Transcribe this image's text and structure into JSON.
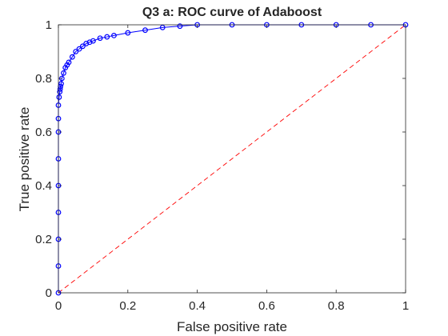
{
  "chart_data": {
    "type": "line",
    "title": "Q3 a: ROC curve of Adaboost",
    "xlabel": "False positive rate",
    "ylabel": "True positive rate",
    "xlim": [
      0,
      1
    ],
    "ylim": [
      0,
      1
    ],
    "xticks": [
      "0",
      "0.2",
      "0.4",
      "0.6",
      "0.8",
      "1"
    ],
    "yticks": [
      "0",
      "0.2",
      "0.4",
      "0.6",
      "0.8",
      "1"
    ],
    "grid": false,
    "series": [
      {
        "color": "#0000ff",
        "marker": "circle",
        "line_style": "solid",
        "x": [
          0,
          0,
          0,
          0,
          0,
          0,
          0,
          0,
          0,
          0.002,
          0.004,
          0.005,
          0.006,
          0.008,
          0.01,
          0.015,
          0.02,
          0.025,
          0.03,
          0.04,
          0.05,
          0.06,
          0.07,
          0.08,
          0.09,
          0.1,
          0.12,
          0.14,
          0.16,
          0.2,
          0.25,
          0.3,
          0.35,
          0.4,
          0.5,
          0.6,
          0.7,
          0.8,
          0.9,
          1.0
        ],
        "y": [
          0,
          0.1,
          0.2,
          0.3,
          0.4,
          0.5,
          0.6,
          0.65,
          0.7,
          0.73,
          0.75,
          0.76,
          0.77,
          0.78,
          0.8,
          0.82,
          0.84,
          0.85,
          0.86,
          0.88,
          0.9,
          0.91,
          0.92,
          0.93,
          0.935,
          0.94,
          0.95,
          0.955,
          0.96,
          0.97,
          0.98,
          0.99,
          0.995,
          1.0,
          1.0,
          1.0,
          1.0,
          1.0,
          1.0,
          1.0
        ]
      },
      {
        "color": "#ff0000",
        "marker": "none",
        "line_style": "dashed",
        "x": [
          0,
          1
        ],
        "y": [
          0,
          1
        ]
      }
    ]
  }
}
